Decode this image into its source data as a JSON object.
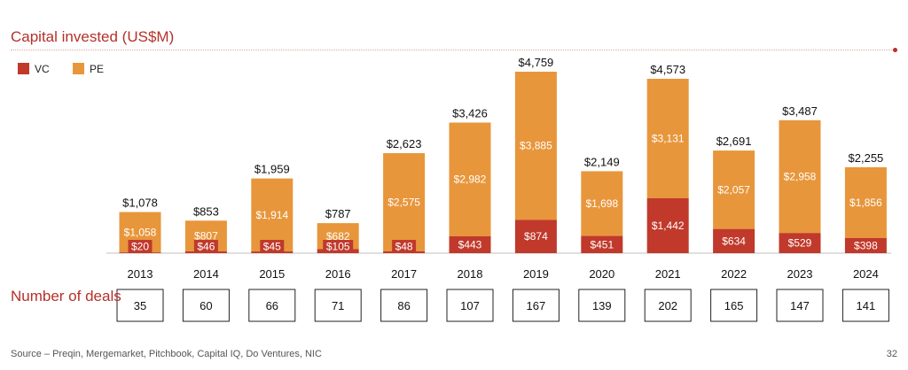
{
  "colors": {
    "vc": "#c0392b",
    "pe": "#e8963b",
    "accent": "#b5302a"
  },
  "header": {
    "title": "Capital invested (US$M)"
  },
  "chart_data": {
    "type": "bar",
    "stacked": true,
    "title": "Capital invested (US$M)",
    "categories": [
      "2013",
      "2014",
      "2015",
      "2016",
      "2017",
      "2018",
      "2019",
      "2020",
      "2021",
      "2022",
      "2023",
      "2024"
    ],
    "series": [
      {
        "name": "VC",
        "values": [
          20,
          46,
          45,
          105,
          48,
          443,
          874,
          451,
          1442,
          634,
          529,
          398
        ],
        "labels": [
          "$20",
          "$46",
          "$45",
          "$105",
          "$48",
          "$443",
          "$874",
          "$451",
          "$1,442",
          "$634",
          "$529",
          "$398"
        ]
      },
      {
        "name": "PE",
        "values": [
          1058,
          807,
          1914,
          682,
          2575,
          2982,
          3885,
          1698,
          3131,
          2057,
          2958,
          1856
        ],
        "labels": [
          "$1,058",
          "$807",
          "$1,914",
          "$682",
          "$2,575",
          "$2,982",
          "$3,885",
          "$1,698",
          "$3,131",
          "$2,057",
          "$2,958",
          "$1,856"
        ]
      }
    ],
    "totals": [
      1078,
      853,
      1959,
      787,
      2623,
      3426,
      4759,
      2149,
      4573,
      2691,
      3487,
      2255
    ],
    "total_labels": [
      "$1,078",
      "$853",
      "$1,959",
      "$787",
      "$2,623",
      "$3,426",
      "$4,759",
      "$2,149",
      "$4,573",
      "$2,691",
      "$3,487",
      "$2,255"
    ],
    "legend": [
      "VC",
      "PE"
    ],
    "legend_position": "top-left",
    "ylim": [
      0,
      4759
    ],
    "xlabel": "",
    "ylabel": "",
    "grid": false
  },
  "deals": {
    "label": "Number of deals",
    "values": [
      "35",
      "60",
      "66",
      "71",
      "86",
      "107",
      "167",
      "139",
      "202",
      "165",
      "147",
      "141"
    ]
  },
  "footer": {
    "source": "Source – Preqin, Mergemarket, Pitchbook, Capital IQ, Do Ventures, NIC",
    "page": "32"
  }
}
